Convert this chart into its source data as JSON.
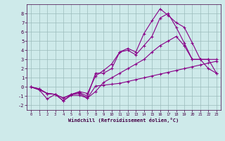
{
  "xlabel": "Windchill (Refroidissement éolien,°C)",
  "background_color": "#ceeaea",
  "grid_color": "#9bbcbc",
  "line_color": "#880088",
  "xlim": [
    -0.5,
    23.5
  ],
  "ylim": [
    -2.5,
    9.0
  ],
  "xticks": [
    0,
    1,
    2,
    3,
    4,
    5,
    6,
    7,
    8,
    9,
    10,
    11,
    12,
    13,
    14,
    15,
    16,
    17,
    18,
    19,
    20,
    21,
    22,
    23
  ],
  "yticks": [
    -2,
    -1,
    0,
    1,
    2,
    3,
    4,
    5,
    6,
    7,
    8
  ],
  "series": [
    {
      "x": [
        0,
        1,
        2,
        3,
        4,
        5,
        6,
        7,
        8,
        9,
        10,
        11,
        12,
        13,
        14,
        15,
        16,
        17,
        18,
        19,
        20,
        21,
        22,
        23
      ],
      "y": [
        0.0,
        -0.3,
        -1.3,
        -0.8,
        -1.5,
        -0.9,
        -0.9,
        -1.2,
        0.1,
        0.2,
        0.3,
        0.4,
        0.6,
        0.8,
        1.0,
        1.2,
        1.4,
        1.6,
        1.8,
        2.0,
        2.2,
        2.4,
        2.6,
        2.8
      ]
    },
    {
      "x": [
        0,
        1,
        2,
        3,
        4,
        5,
        6,
        7,
        8,
        9,
        10,
        11,
        12,
        13,
        14,
        15,
        16,
        17,
        18,
        19,
        20,
        21,
        22,
        23
      ],
      "y": [
        0.0,
        -0.2,
        -0.7,
        -0.8,
        -1.2,
        -0.8,
        -0.6,
        -1.0,
        1.5,
        1.5,
        2.0,
        3.8,
        4.0,
        3.5,
        4.5,
        5.5,
        7.5,
        8.0,
        6.5,
        4.8,
        3.0,
        3.0,
        3.0,
        1.5
      ]
    },
    {
      "x": [
        0,
        1,
        2,
        3,
        4,
        5,
        6,
        7,
        8,
        9,
        10,
        11,
        12,
        13,
        14,
        15,
        16,
        17,
        18,
        19,
        20,
        21,
        22,
        23
      ],
      "y": [
        0.0,
        -0.3,
        -0.7,
        -0.8,
        -1.5,
        -0.8,
        -0.5,
        -0.7,
        1.2,
        1.8,
        2.5,
        3.8,
        4.2,
        3.8,
        5.8,
        7.2,
        8.5,
        7.8,
        7.0,
        6.5,
        4.8,
        3.0,
        3.0,
        3.0
      ]
    },
    {
      "x": [
        0,
        1,
        2,
        3,
        4,
        5,
        6,
        7,
        8,
        9,
        10,
        11,
        12,
        13,
        14,
        15,
        16,
        17,
        18,
        19,
        20,
        21,
        22,
        23
      ],
      "y": [
        0.0,
        -0.2,
        -0.7,
        -0.8,
        -1.2,
        -0.8,
        -0.7,
        -1.2,
        -0.5,
        0.5,
        1.0,
        1.5,
        2.0,
        2.5,
        3.0,
        3.8,
        4.5,
        5.0,
        5.5,
        4.5,
        3.0,
        3.0,
        2.0,
        1.5
      ]
    }
  ]
}
